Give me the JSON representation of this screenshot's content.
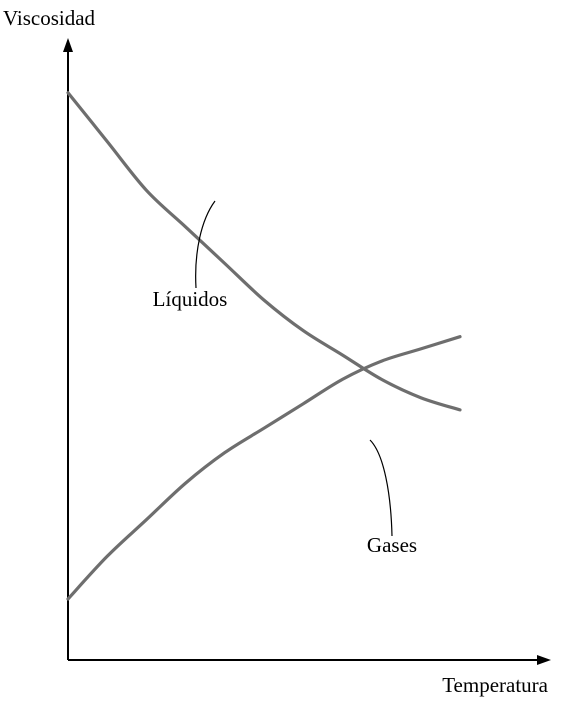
{
  "chart_data": {
    "type": "line",
    "title": "",
    "xlabel": "Temperatura",
    "ylabel": "Viscosidad",
    "grid": false,
    "ticks": false,
    "xlim": [
      0,
      1
    ],
    "ylim": [
      0,
      1
    ],
    "x": [
      0,
      0.1,
      0.2,
      0.3,
      0.4,
      0.5,
      0.6,
      0.7,
      0.8,
      0.9,
      1.0
    ],
    "series": [
      {
        "name": "Líquidos",
        "values": [
          0.93,
          0.85,
          0.77,
          0.71,
          0.65,
          0.59,
          0.54,
          0.5,
          0.46,
          0.43,
          0.41
        ]
      },
      {
        "name": "Gases",
        "values": [
          0.1,
          0.17,
          0.23,
          0.29,
          0.34,
          0.38,
          0.42,
          0.46,
          0.49,
          0.51,
          0.53
        ]
      }
    ],
    "colors": {
      "series_line": "#6e6e6e",
      "axis": "#000000",
      "text": "#000000"
    }
  }
}
